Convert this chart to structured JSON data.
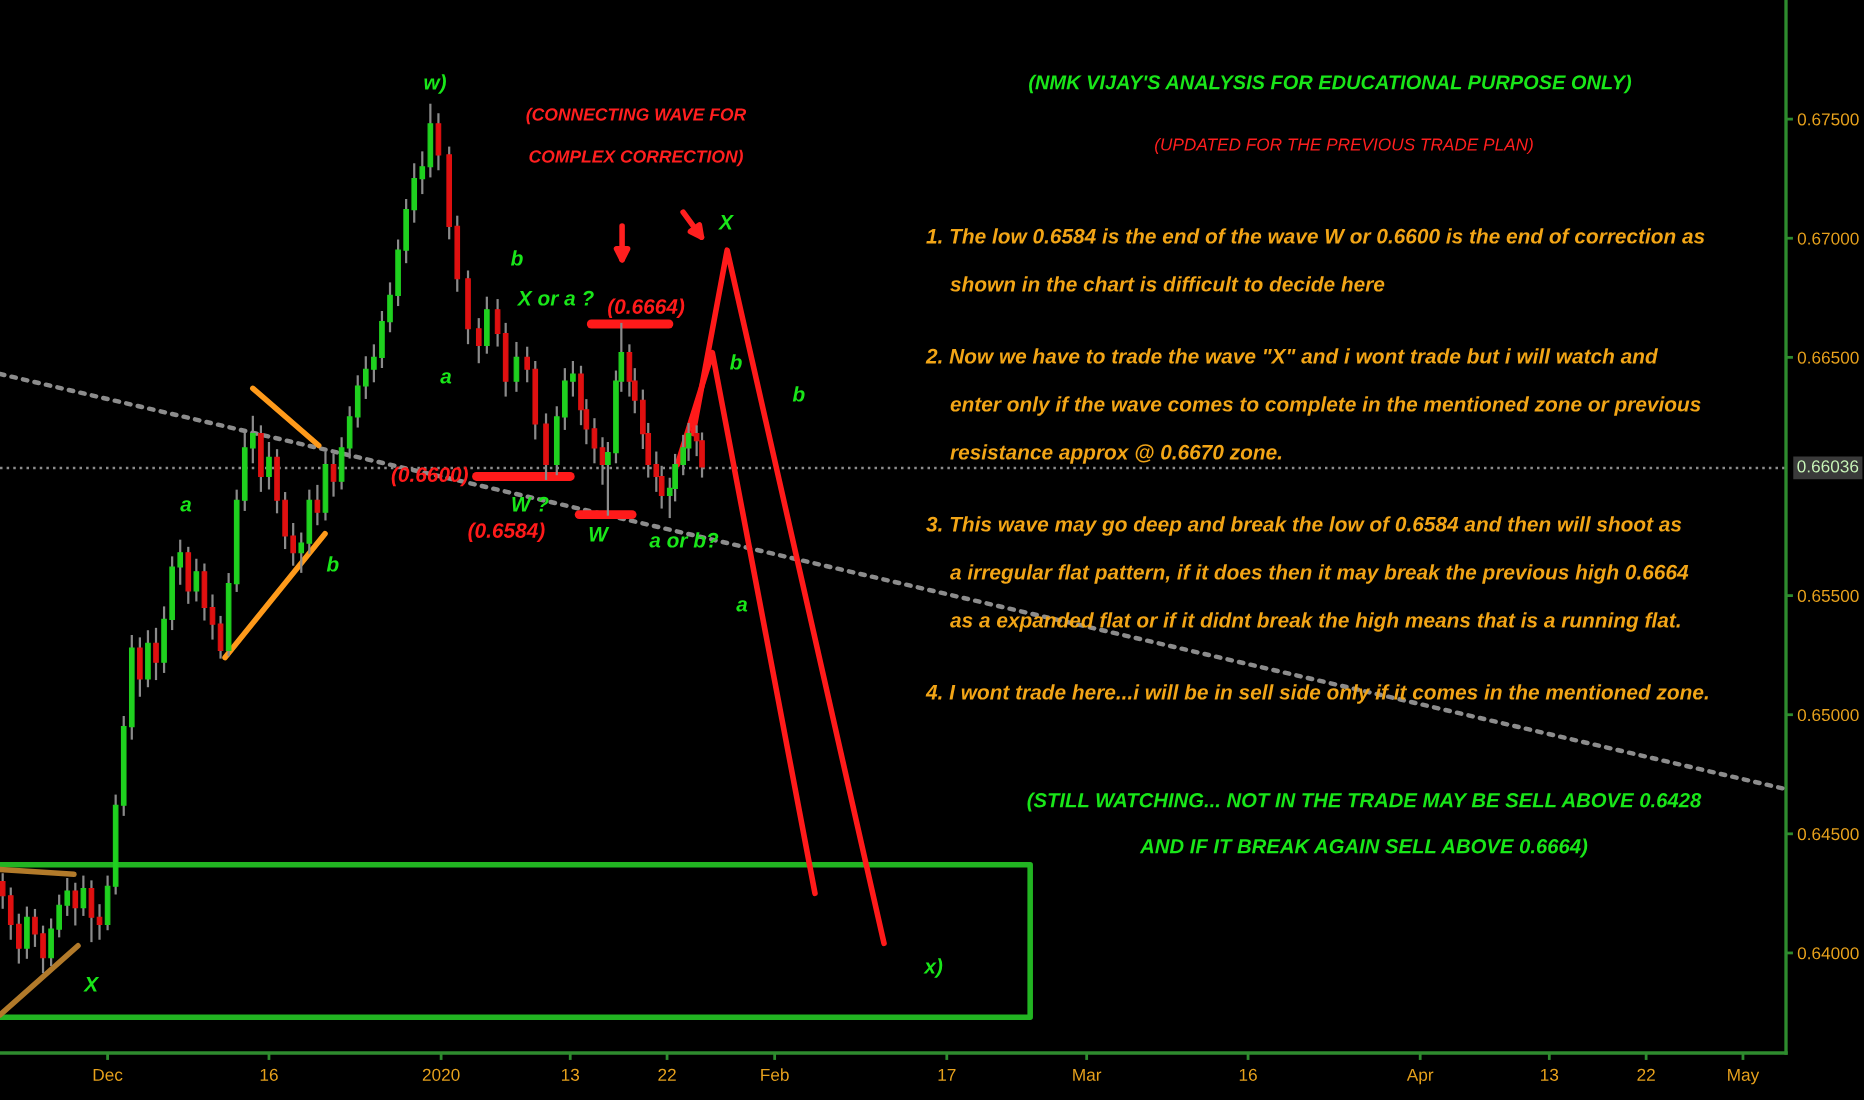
{
  "chart_data": {
    "type": "candlestick",
    "title": "(NMK VIJAY'S ANALYSIS FOR EDUCATIONAL PURPOSE ONLY)",
    "subtitle": "(UPDATED FOR THE PREVIOUS TRADE PLAN)",
    "x": [
      "2019-11-21T06:00",
      "2019-11-22T00:00",
      "2019-11-22T18:00",
      "2019-11-23T12:00",
      "2019-11-24T06:00",
      "2019-11-25T00:00",
      "2019-11-25T18:00",
      "2019-11-26T12:00",
      "2019-11-27T06:00",
      "2019-11-28T00:00",
      "2019-11-28T18:00",
      "2019-11-29T12:00",
      "2019-11-30T06:00",
      "2019-12-01T00:00",
      "2019-12-01T18:00",
      "2019-12-02T12:00",
      "2019-12-03T06:00",
      "2019-12-04T00:00",
      "2019-12-04T18:00",
      "2019-12-05T12:00",
      "2019-12-06T06:00",
      "2019-12-07T00:00",
      "2019-12-07T18:00",
      "2019-12-08T12:00",
      "2019-12-09T06:00",
      "2019-12-10T00:00",
      "2019-12-10T18:00",
      "2019-12-11T12:00",
      "2019-12-12T06:00",
      "2019-12-13T00:00",
      "2019-12-13T18:00",
      "2019-12-14T12:00",
      "2019-12-15T06:00",
      "2019-12-16T00:00",
      "2019-12-16T18:00",
      "2019-12-17T12:00",
      "2019-12-18T06:00",
      "2019-12-19T00:00",
      "2019-12-19T18:00",
      "2019-12-20T12:00",
      "2019-12-21T06:00",
      "2019-12-22T00:00",
      "2019-12-22T18:00",
      "2019-12-23T12:00",
      "2019-12-24T06:00",
      "2019-12-25T00:00",
      "2019-12-25T18:00",
      "2019-12-26T12:00",
      "2019-12-27T06:00",
      "2019-12-28T00:00",
      "2019-12-28T18:00",
      "2019-12-29T12:00",
      "2019-12-30T06:00",
      "2019-12-31T00:00",
      "2019-12-31T18:00",
      "2020-01-01T18:00",
      "2020-01-02T12:00",
      "2020-01-03T12:00",
      "2020-01-04T12:00",
      "2020-01-05T06:00",
      "2020-01-06T06:00",
      "2020-01-07T00:00",
      "2020-01-08T00:00",
      "2020-01-09T00:00",
      "2020-01-09T18:00",
      "2020-01-10T18:00",
      "2020-01-11T18:00",
      "2020-01-12T12:00",
      "2020-01-13T06:00",
      "2020-01-14T00:00",
      "2020-01-14T12:00",
      "2020-01-15T06:00",
      "2020-01-16T00:00",
      "2020-01-16T12:00",
      "2020-01-17T06:00",
      "2020-01-17T18:00",
      "2020-01-18T12:00",
      "2020-01-19T00:00",
      "2020-01-19T18:00",
      "2020-01-20T06:00",
      "2020-01-21T00:00",
      "2020-01-21T12:00",
      "2020-01-22T06:00",
      "2020-01-22T18:00",
      "2020-01-23T12:00",
      "2020-01-24T00:00",
      "2020-01-24T18:00",
      "2020-01-25T06:00"
    ],
    "ohlc": [
      [
        0.643,
        0.6433,
        0.6419,
        0.6424
      ],
      [
        0.6424,
        0.6427,
        0.6406,
        0.6412
      ],
      [
        0.6412,
        0.6416,
        0.6396,
        0.6402
      ],
      [
        0.6402,
        0.6419,
        0.6398,
        0.6415
      ],
      [
        0.6415,
        0.6418,
        0.6403,
        0.6408
      ],
      [
        0.6408,
        0.6411,
        0.6392,
        0.6398
      ],
      [
        0.6398,
        0.6414,
        0.6395,
        0.641
      ],
      [
        0.641,
        0.6424,
        0.6407,
        0.642
      ],
      [
        0.642,
        0.6431,
        0.6416,
        0.6426
      ],
      [
        0.6426,
        0.6429,
        0.6412,
        0.6419
      ],
      [
        0.6419,
        0.6432,
        0.6416,
        0.6427
      ],
      [
        0.6427,
        0.643,
        0.6405,
        0.6415
      ],
      [
        0.6415,
        0.642,
        0.6406,
        0.6412
      ],
      [
        0.6412,
        0.6432,
        0.641,
        0.6428
      ],
      [
        0.6428,
        0.6466,
        0.6425,
        0.6462
      ],
      [
        0.6462,
        0.6499,
        0.6458,
        0.6495
      ],
      [
        0.6495,
        0.6533,
        0.649,
        0.6528
      ],
      [
        0.6528,
        0.6532,
        0.6508,
        0.6515
      ],
      [
        0.6515,
        0.6535,
        0.6512,
        0.653
      ],
      [
        0.653,
        0.6536,
        0.6515,
        0.6522
      ],
      [
        0.6522,
        0.6545,
        0.6518,
        0.654
      ],
      [
        0.654,
        0.6566,
        0.6536,
        0.6562
      ],
      [
        0.6562,
        0.6573,
        0.6555,
        0.6568
      ],
      [
        0.6568,
        0.657,
        0.6547,
        0.6552
      ],
      [
        0.6552,
        0.6565,
        0.6548,
        0.656
      ],
      [
        0.656,
        0.6563,
        0.654,
        0.6545
      ],
      [
        0.6545,
        0.655,
        0.6532,
        0.6538
      ],
      [
        0.6538,
        0.6541,
        0.6524,
        0.6527
      ],
      [
        0.6527,
        0.6559,
        0.6525,
        0.6555
      ],
      [
        0.6555,
        0.6594,
        0.6552,
        0.659
      ],
      [
        0.659,
        0.6618,
        0.6586,
        0.6612
      ],
      [
        0.6612,
        0.6625,
        0.6606,
        0.6618
      ],
      [
        0.6618,
        0.6621,
        0.6594,
        0.66
      ],
      [
        0.66,
        0.6614,
        0.6595,
        0.6608
      ],
      [
        0.6608,
        0.6611,
        0.6585,
        0.659
      ],
      [
        0.659,
        0.6593,
        0.657,
        0.6575
      ],
      [
        0.6575,
        0.658,
        0.6563,
        0.6568
      ],
      [
        0.6568,
        0.6576,
        0.656,
        0.6572
      ],
      [
        0.6572,
        0.6594,
        0.6568,
        0.659
      ],
      [
        0.659,
        0.6596,
        0.658,
        0.6585
      ],
      [
        0.6585,
        0.661,
        0.6582,
        0.6605
      ],
      [
        0.6605,
        0.6609,
        0.6592,
        0.6598
      ],
      [
        0.6598,
        0.6616,
        0.6595,
        0.6612
      ],
      [
        0.6612,
        0.6629,
        0.6608,
        0.6625
      ],
      [
        0.6625,
        0.6642,
        0.6621,
        0.6638
      ],
      [
        0.6638,
        0.665,
        0.6633,
        0.6645
      ],
      [
        0.6645,
        0.6655,
        0.664,
        0.665
      ],
      [
        0.665,
        0.6669,
        0.6646,
        0.6665
      ],
      [
        0.6665,
        0.6681,
        0.6661,
        0.6676
      ],
      [
        0.6676,
        0.6699,
        0.6672,
        0.6695
      ],
      [
        0.6695,
        0.6716,
        0.669,
        0.6712
      ],
      [
        0.6712,
        0.6731,
        0.6707,
        0.6725
      ],
      [
        0.6725,
        0.6736,
        0.6719,
        0.673
      ],
      [
        0.673,
        0.6756,
        0.6726,
        0.6748
      ],
      [
        0.6748,
        0.6752,
        0.6729,
        0.6735
      ],
      [
        0.6735,
        0.6738,
        0.67,
        0.6705
      ],
      [
        0.6705,
        0.6709,
        0.6678,
        0.6683
      ],
      [
        0.6683,
        0.6686,
        0.6656,
        0.6662
      ],
      [
        0.6662,
        0.6666,
        0.6648,
        0.6655
      ],
      [
        0.6655,
        0.6675,
        0.6652,
        0.667
      ],
      [
        0.667,
        0.6674,
        0.6655,
        0.666
      ],
      [
        0.666,
        0.6664,
        0.6634,
        0.664
      ],
      [
        0.664,
        0.6656,
        0.6636,
        0.665
      ],
      [
        0.665,
        0.6654,
        0.664,
        0.6645
      ],
      [
        0.6645,
        0.6648,
        0.6616,
        0.6622
      ],
      [
        0.6622,
        0.6626,
        0.6599,
        0.6605
      ],
      [
        0.6605,
        0.6629,
        0.6601,
        0.6625
      ],
      [
        0.6625,
        0.6645,
        0.662,
        0.664
      ],
      [
        0.664,
        0.6648,
        0.6634,
        0.6643
      ],
      [
        0.6643,
        0.6646,
        0.6622,
        0.6628
      ],
      [
        0.6628,
        0.6632,
        0.6614,
        0.662
      ],
      [
        0.662,
        0.6624,
        0.6606,
        0.6612
      ],
      [
        0.6612,
        0.6616,
        0.6597,
        0.6605
      ],
      [
        0.6605,
        0.6614,
        0.6584,
        0.661
      ],
      [
        0.661,
        0.6644,
        0.6606,
        0.664
      ],
      [
        0.664,
        0.6664,
        0.6636,
        0.6652
      ],
      [
        0.6652,
        0.6655,
        0.6634,
        0.664
      ],
      [
        0.664,
        0.6645,
        0.6627,
        0.6632
      ],
      [
        0.6632,
        0.6636,
        0.6612,
        0.6618
      ],
      [
        0.6618,
        0.6622,
        0.66,
        0.6605
      ],
      [
        0.6605,
        0.661,
        0.6594,
        0.66
      ],
      [
        0.66,
        0.6604,
        0.6587,
        0.6592
      ],
      [
        0.6592,
        0.6599,
        0.6583,
        0.6595
      ],
      [
        0.6595,
        0.6609,
        0.659,
        0.6605
      ],
      [
        0.6605,
        0.6617,
        0.6601,
        0.6612
      ],
      [
        0.6612,
        0.6622,
        0.6607,
        0.6618
      ],
      [
        0.6618,
        0.6621,
        0.6609,
        0.6615
      ],
      [
        0.6615,
        0.6618,
        0.66,
        0.6604
      ]
    ],
    "series": [
      {
        "type": "line",
        "x": [
          "2019-11-21T00:00",
          "2020-05-04T18:00"
        ],
        "values": [
          0.6643,
          0.6469
        ],
        "color": "#8c8c8c",
        "line_style": "dotted"
      },
      {
        "type": "line",
        "x": [
          "2019-11-21T00:00",
          "2020-02-24T18:00",
          "2020-02-24T18:00",
          "2019-11-21T00:00"
        ],
        "values": [
          0.6437,
          0.6437,
          0.6373,
          0.6373
        ],
        "color": "#22b422"
      },
      {
        "type": "line",
        "x": [
          "2019-12-14T12:00",
          "2019-12-20T15:00"
        ],
        "values": [
          0.6637,
          0.6613
        ],
        "color": "#ff9a1a"
      },
      {
        "type": "line",
        "x": [
          "2019-12-11T22:00",
          "2019-12-21T05:00"
        ],
        "values": [
          0.6524,
          0.6576
        ],
        "color": "#ff9a1a"
      },
      {
        "type": "line",
        "x": [
          "2019-11-21T00:00",
          "2019-11-27T21:00"
        ],
        "values": [
          0.6435,
          0.6433
        ],
        "color": "#b27a2a"
      },
      {
        "type": "line",
        "x": [
          "2019-11-21T00:00",
          "2019-11-28T06:00"
        ],
        "values": [
          0.6374,
          0.6403
        ],
        "color": "#b27a2a"
      },
      {
        "type": "line",
        "name": "(0.6600)",
        "x": [
          "2020-01-04T07:00",
          "2020-01-13T00:00"
        ],
        "values": [
          0.66,
          0.66
        ],
        "color": "#ff1a1a"
      },
      {
        "type": "line",
        "name": "(0.6584)",
        "x": [
          "2020-01-13T20:00",
          "2020-01-18T18:00"
        ],
        "values": [
          0.6584,
          0.6584
        ],
        "color": "#ff1a1a"
      },
      {
        "type": "line",
        "name": "(0.6664)",
        "x": [
          "2020-01-14T23:00",
          "2020-01-22T04:00"
        ],
        "values": [
          0.6664,
          0.6664
        ],
        "color": "#ff1a1a"
      },
      {
        "type": "line",
        "x": [
          "2020-01-22T23:00",
          "2020-01-26T05:00",
          "2020-02-04T18:00"
        ],
        "values": [
          0.6605,
          0.6652,
          0.6425
        ],
        "color": "#ff1a1a"
      },
      {
        "type": "line",
        "x": [
          "2020-01-24T10:00",
          "2020-01-27T14:00",
          "2020-02-11T04:00"
        ],
        "values": [
          0.6618,
          0.6695,
          0.6404
        ],
        "color": "#ff1a1a"
      }
    ],
    "xlim": [
      "2019-11-21",
      "2020-05-05"
    ],
    "xticks": [
      {
        "value": "2019-12-01",
        "label": "Dec"
      },
      {
        "value": "2019-12-16",
        "label": "16"
      },
      {
        "value": "2020-01-01",
        "label": "2020"
      },
      {
        "value": "2020-01-13",
        "label": "13"
      },
      {
        "value": "2020-01-22",
        "label": "22"
      },
      {
        "value": "2020-02-01",
        "label": "Feb"
      },
      {
        "value": "2020-02-17",
        "label": "17"
      },
      {
        "value": "2020-03-01",
        "label": "Mar"
      },
      {
        "value": "2020-03-16",
        "label": "16"
      },
      {
        "value": "2020-04-01",
        "label": "Apr"
      },
      {
        "value": "2020-04-13",
        "label": "13"
      },
      {
        "value": "2020-04-22",
        "label": "22"
      },
      {
        "value": "2020-05-01",
        "label": "May"
      }
    ],
    "ylim": [
      0.6358,
      0.68
    ],
    "yticks": [
      {
        "value": 0.64,
        "label": "0.64000"
      },
      {
        "value": 0.645,
        "label": "0.64500"
      },
      {
        "value": 0.65,
        "label": "0.65000"
      },
      {
        "value": 0.655,
        "label": "0.65500"
      },
      {
        "value": 0.665,
        "label": "0.66500"
      },
      {
        "value": 0.67,
        "label": "0.67000"
      },
      {
        "value": 0.675,
        "label": "0.67500"
      }
    ],
    "ref_lines": [
      {
        "axis": "y",
        "value": 0.66036,
        "label": "0.66036",
        "color": "#8c8c8c",
        "line_style": "dotted"
      }
    ],
    "annotations": [
      "w)",
      "b",
      "a",
      "a",
      "b",
      "X or a ?",
      "W ?",
      "W",
      "a or b?",
      "X",
      "b",
      "b",
      "a",
      "x)",
      "X",
      "(CONNECTING WAVE FOR\nCOMPLEX CORRECTION)",
      "1. The low 0.6584 is the end of the wave W or 0.6600 is the end of correction as\nshown in the chart is difficult to decide here",
      "2. Now we have to trade the wave \"X\" and i wont trade but i will watch and\nenter only if the wave comes to complete in the mentioned zone or previous\nresistance approx @ 0.6670 zone.",
      "3. This wave may go deep and break the low of 0.6584 and then will shoot as\na irregular flat pattern, if it does then it may break the previous high 0.6664\nas a expanded flat or if it didnt break the high means that is a running flat.",
      "4. I wont trade here...i will be in sell side only if it comes in the mentioned zone.",
      "(STILL WATCHING... NOT IN THE TRADE MAY BE SELL ABOVE 0.6428\nAND IF IT BREAK AGAIN SELL ABOVE 0.6664)"
    ]
  }
}
